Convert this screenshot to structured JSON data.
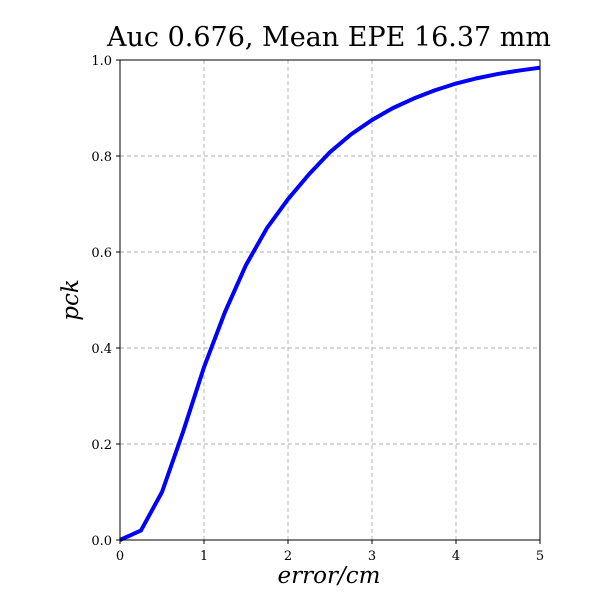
{
  "chart_data": {
    "type": "line",
    "title": "Auc 0.676, Mean EPE 16.37 mm",
    "xlabel": "error/cm",
    "ylabel": "pck",
    "xlim": [
      0,
      5
    ],
    "ylim": [
      0,
      1.0
    ],
    "xticks": [
      "0",
      "1",
      "2",
      "3",
      "4",
      "5"
    ],
    "yticks": [
      "0.0",
      "0.2",
      "0.4",
      "0.6",
      "0.8",
      "1.0"
    ],
    "grid": true,
    "series": [
      {
        "color": "#0000ff",
        "x": [
          0,
          0.25,
          0.5,
          0.75,
          1.0,
          1.25,
          1.5,
          1.75,
          2.0,
          2.25,
          2.5,
          2.75,
          3.0,
          3.25,
          3.5,
          3.75,
          4.0,
          4.25,
          4.5,
          4.75,
          5.0
        ],
        "y": [
          0.0,
          0.02,
          0.1,
          0.225,
          0.36,
          0.475,
          0.573,
          0.65,
          0.71,
          0.762,
          0.808,
          0.845,
          0.875,
          0.9,
          0.92,
          0.937,
          0.951,
          0.962,
          0.971,
          0.978,
          0.984
        ]
      }
    ]
  }
}
